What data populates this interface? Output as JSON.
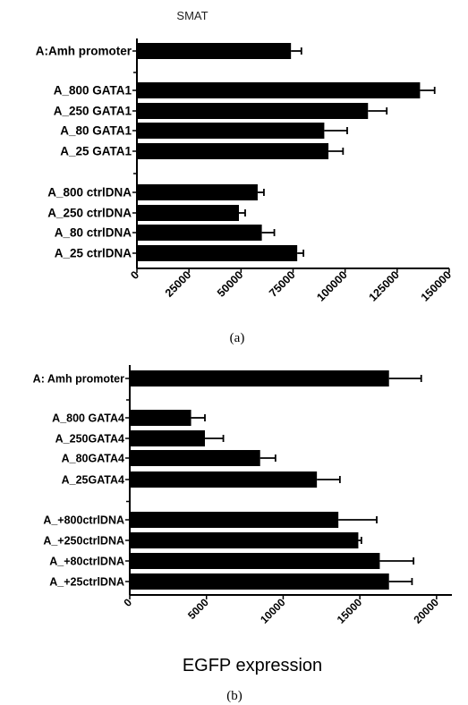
{
  "chart_data": [
    {
      "type": "bar",
      "orientation": "horizontal",
      "title": "SMAT",
      "caption": "(a)",
      "xlabel": "",
      "xlim": [
        0,
        150000
      ],
      "xticks": [
        "0",
        "25000",
        "50000",
        "75000",
        "100000",
        "125000",
        "150000"
      ],
      "grid": false,
      "categories": [
        "A:Amh promoter",
        "A_800 GATA1",
        "A_250 GATA1",
        "A_80 GATA1",
        "A_25 GATA1",
        "A_800 ctrlDNA",
        "A_250 ctrlDNA",
        "A_80 ctrlDNA",
        "A_25 ctrlDNA"
      ],
      "values": [
        74000,
        136000,
        111000,
        90000,
        92000,
        58000,
        49000,
        60000,
        77000
      ],
      "errors": [
        5000,
        7000,
        9000,
        11000,
        7000,
        3000,
        3000,
        6000,
        3000
      ]
    },
    {
      "type": "bar",
      "orientation": "horizontal",
      "title": "",
      "caption": "(b)",
      "xlabel": "EGFP  expression",
      "xlim": [
        0,
        21000
      ],
      "xticks": [
        "0",
        "5000",
        "10000",
        "15000",
        "20000"
      ],
      "grid": false,
      "categories": [
        "A: Amh promoter",
        "A_800 GATA4",
        "A_250GATA4",
        "A_80GATA4",
        "A_25GATA4",
        "A_+800ctrlDNA",
        "A_+250ctrlDNA",
        "A_+80ctrlDNA",
        "A_+25ctrlDNA"
      ],
      "values": [
        16900,
        4000,
        4900,
        8500,
        12200,
        13600,
        14900,
        16300,
        16900
      ],
      "errors": [
        2100,
        900,
        1200,
        1000,
        1500,
        2500,
        200,
        2200,
        1500
      ]
    }
  ],
  "colors": {
    "bar": "#000000",
    "axis": "#000000",
    "background": "#ffffff"
  }
}
